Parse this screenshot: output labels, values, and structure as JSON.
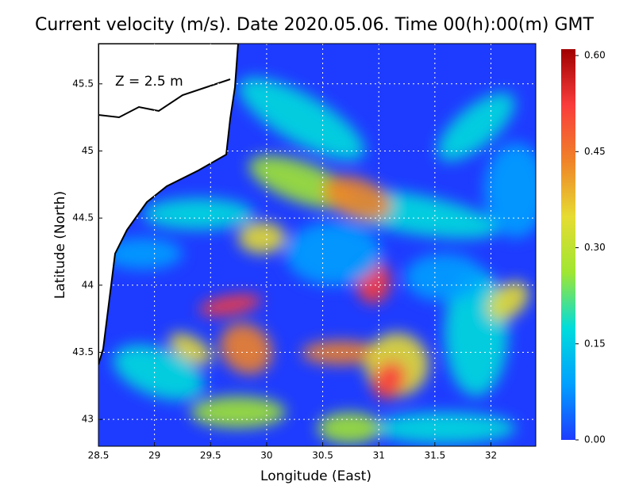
{
  "chart_data": {
    "type": "heatmap",
    "title": "Current velocity (m/s). Date 2020.05.06. Time 00(h):00(m) GMT",
    "xlabel": "Longitude (East)",
    "ylabel": "Latitude (North)",
    "annotation": "Z = 2.5 m",
    "xlim": [
      28.5,
      32.4
    ],
    "xticks": [
      28.5,
      29,
      29.5,
      30,
      30.5,
      31,
      31.5,
      32
    ],
    "ylim": [
      42.8,
      45.8
    ],
    "yticks": [
      43,
      43.5,
      44,
      44.5,
      45,
      45.5
    ],
    "grid": true,
    "colorbar": {
      "lim": [
        0,
        0.61
      ],
      "ticks": [
        {
          "value": 0,
          "label": "0.00"
        },
        {
          "value": 0.15,
          "label": "0.15"
        },
        {
          "value": 0.3,
          "label": "0.30"
        },
        {
          "value": 0.45,
          "label": "0.45"
        },
        {
          "value": 0.6,
          "label": "0.60"
        }
      ],
      "colors": [
        "#1e3cff",
        "#00a0ff",
        "#00dcdc",
        "#a0e632",
        "#e6dc32",
        "#f08228",
        "#fa3c3c",
        "#a00000"
      ]
    }
  }
}
